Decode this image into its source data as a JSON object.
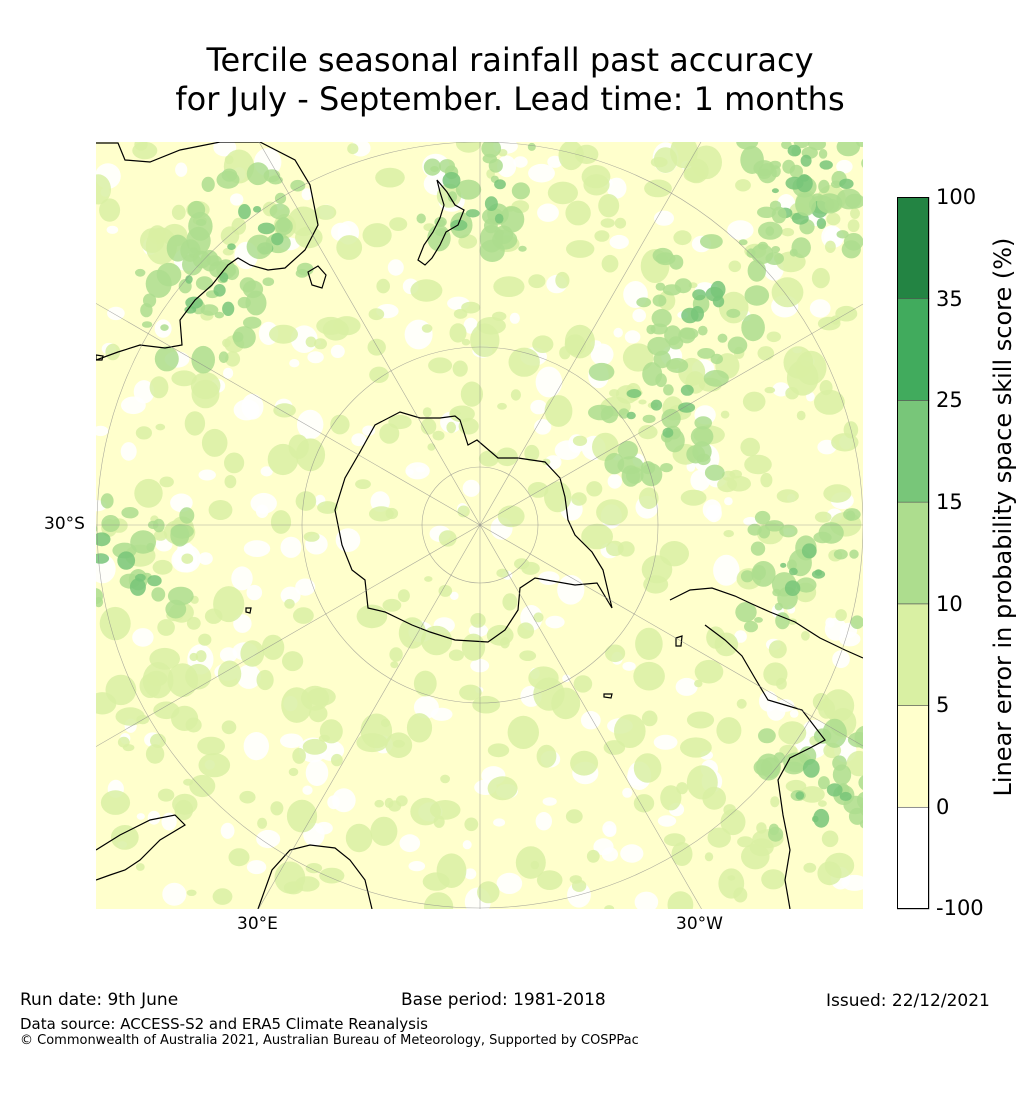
{
  "title": {
    "line1": "Tercile seasonal rainfall past accuracy",
    "line2": "for July - September. Lead time: 1 months"
  },
  "map": {
    "projection": "south polar stereographic",
    "labels": {
      "lat_30s": "30°S",
      "lon_30e": "30°E",
      "lon_30w": "30°W"
    }
  },
  "colorbar": {
    "label": "Linear error in probability space skill score (%)",
    "ticks": [
      "100",
      "35",
      "25",
      "15",
      "10",
      "5",
      "0",
      "-100"
    ],
    "bins": [
      {
        "range": "-100 to 0",
        "color": "#ffffff"
      },
      {
        "range": "0 to 5",
        "color": "#ffffcc"
      },
      {
        "range": "5 to 10",
        "color": "#d9f0a3"
      },
      {
        "range": "10 to 15",
        "color": "#addd8e"
      },
      {
        "range": "15 to 25",
        "color": "#78c679"
      },
      {
        "range": "25 to 35",
        "color": "#41ab5d"
      },
      {
        "range": "35 to 100",
        "color": "#238443"
      }
    ]
  },
  "footer": {
    "run_date": "Run date: 9th June",
    "base_period": "Base period: 1981-2018",
    "issued": "Issued: 22/12/2021",
    "data_source": "Data source: ACCESS-S2 and ERA5 Climate Reanalysis",
    "copyright": "© Commonwealth of Australia 2021, Australian Bureau of Meteorology, Supported by COSPPac"
  }
}
